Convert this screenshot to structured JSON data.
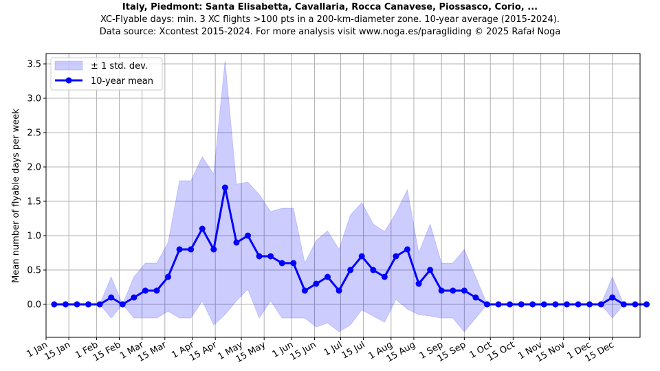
{
  "chart_data": {
    "type": "line",
    "title": "Italy, Piedmont: Santa Elisabetta, Cavallaria, Rocca Canavese, Piossasco, Corio, ...",
    "subtitle": "XC-Flyable days: min. 3 XC flights >100 pts in a 200-km-diameter zone. 10-year average (2015-2024).",
    "source": "Data source: Xcontest 2015-2024. For more analysis visit www.noga.es/paragliding © 2025 Rafał Noga",
    "xlabel": "",
    "ylabel": "Mean number of flyable days per week",
    "ylim": [
      -0.48,
      3.65
    ],
    "xlim_day_of_year": [
      0,
      365
    ],
    "grid": true,
    "legend_position": "top-left",
    "legend": [
      "± 1 std. dev.",
      "10-year mean"
    ],
    "yticks": [
      0.0,
      0.5,
      1.0,
      1.5,
      2.0,
      2.5,
      3.0,
      3.5
    ],
    "yticklabels": [
      "0.0",
      "0.5",
      "1.0",
      "1.5",
      "2.0",
      "2.5",
      "3.0",
      "3.5"
    ],
    "xticks": [
      {
        "label": "1 Jan",
        "day": 0
      },
      {
        "label": "15 Jan",
        "day": 14
      },
      {
        "label": "1 Feb",
        "day": 31
      },
      {
        "label": "15 Feb",
        "day": 45
      },
      {
        "label": "1 Mar",
        "day": 59
      },
      {
        "label": "15 Mar",
        "day": 73
      },
      {
        "label": "1 Apr",
        "day": 90
      },
      {
        "label": "15 Apr",
        "day": 104
      },
      {
        "label": "1 May",
        "day": 120
      },
      {
        "label": "15 May",
        "day": 134
      },
      {
        "label": "1 Jun",
        "day": 151
      },
      {
        "label": "15 Jun",
        "day": 165
      },
      {
        "label": "1 Jul",
        "day": 181
      },
      {
        "label": "15 Jul",
        "day": 195
      },
      {
        "label": "1 Aug",
        "day": 212
      },
      {
        "label": "15 Aug",
        "day": 226
      },
      {
        "label": "1 Sep",
        "day": 243
      },
      {
        "label": "15 Sep",
        "day": 257
      },
      {
        "label": "1 Oct",
        "day": 273
      },
      {
        "label": "15 Oct",
        "day": 287
      },
      {
        "label": "1 Nov",
        "day": 304
      },
      {
        "label": "15 Nov",
        "day": 318
      },
      {
        "label": "1 Dec",
        "day": 334
      },
      {
        "label": "15 Dec",
        "day": 348
      }
    ],
    "x_day_start": 5,
    "x_day_step": 7,
    "series": [
      {
        "name": "10-year mean",
        "color": "#0000ff",
        "values": [
          0,
          0,
          0,
          0,
          0,
          0.1,
          0,
          0.1,
          0.2,
          0.2,
          0.4,
          0.8,
          0.8,
          1.1,
          0.8,
          1.7,
          0.9,
          1.0,
          0.7,
          0.7,
          0.6,
          0.6,
          0.2,
          0.3,
          0.4,
          0.2,
          0.5,
          0.7,
          0.5,
          0.4,
          0.7,
          0.8,
          0.3,
          0.5,
          0.2,
          0.2,
          0.2,
          0.1,
          0,
          0,
          0,
          0,
          0,
          0,
          0,
          0,
          0,
          0,
          0,
          0.1,
          0,
          0,
          0
        ]
      },
      {
        "name": "± 1 std. dev.",
        "color": "#0000ff",
        "values": [
          0,
          0,
          0,
          0,
          0,
          0.3,
          0,
          0.3,
          0.4,
          0.4,
          0.5,
          1.0,
          1.0,
          1.05,
          1.1,
          1.85,
          0.85,
          0.78,
          0.9,
          0.65,
          0.8,
          0.8,
          0.4,
          0.63,
          0.67,
          0.6,
          0.8,
          0.78,
          0.67,
          0.66,
          0.63,
          0.87,
          0.45,
          0.67,
          0.4,
          0.4,
          0.6,
          0.3,
          0,
          0,
          0,
          0,
          0,
          0,
          0,
          0,
          0,
          0,
          0,
          0.3,
          0,
          0,
          0
        ]
      }
    ]
  }
}
